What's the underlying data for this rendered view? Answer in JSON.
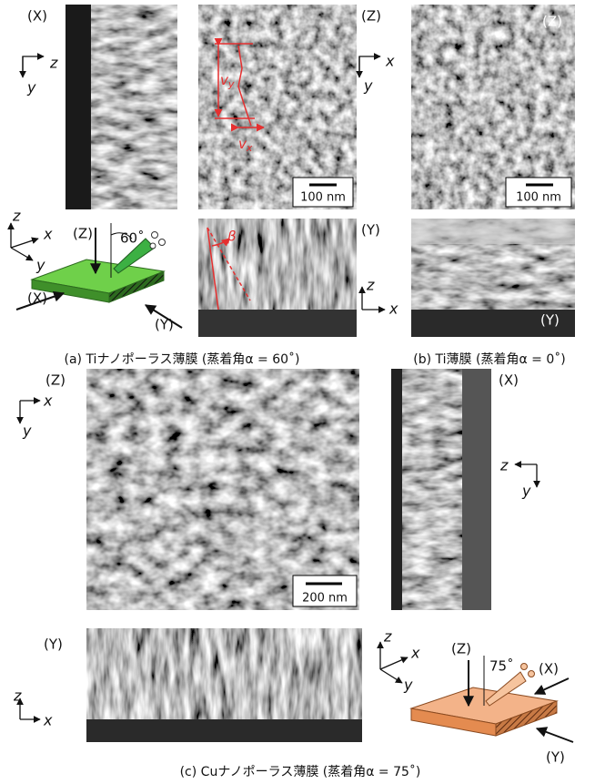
{
  "labels": [
    "(X)",
    "z",
    "y",
    "(Z)",
    "100 nm",
    "x",
    "y",
    "(Z)",
    "100 nm",
    "z",
    "x",
    "y",
    "(Z)",
    "60˚",
    "(X)",
    "(Y)",
    "β",
    "(Y)",
    "z",
    "x",
    "(Y)",
    "(a) Tiナノポーラス薄膜 (蒸着角α = 60˚)",
    "(b) Ti薄膜 (蒸着角α = 0˚)",
    "(Z)",
    "x",
    "y",
    "200 nm",
    "(X)",
    "z",
    "y",
    "(Y)",
    "z",
    "x",
    "z",
    "x",
    "y",
    "(Z)",
    "75˚",
    "(X)",
    "(Y)",
    "(c) Cuナノポーラス薄膜 (蒸着角α = 75˚)"
  ],
  "vector_labels": [
    {
      "symbol": "v",
      "subscript": "y"
    },
    {
      "symbol": "v",
      "subscript": "x"
    }
  ]
}
